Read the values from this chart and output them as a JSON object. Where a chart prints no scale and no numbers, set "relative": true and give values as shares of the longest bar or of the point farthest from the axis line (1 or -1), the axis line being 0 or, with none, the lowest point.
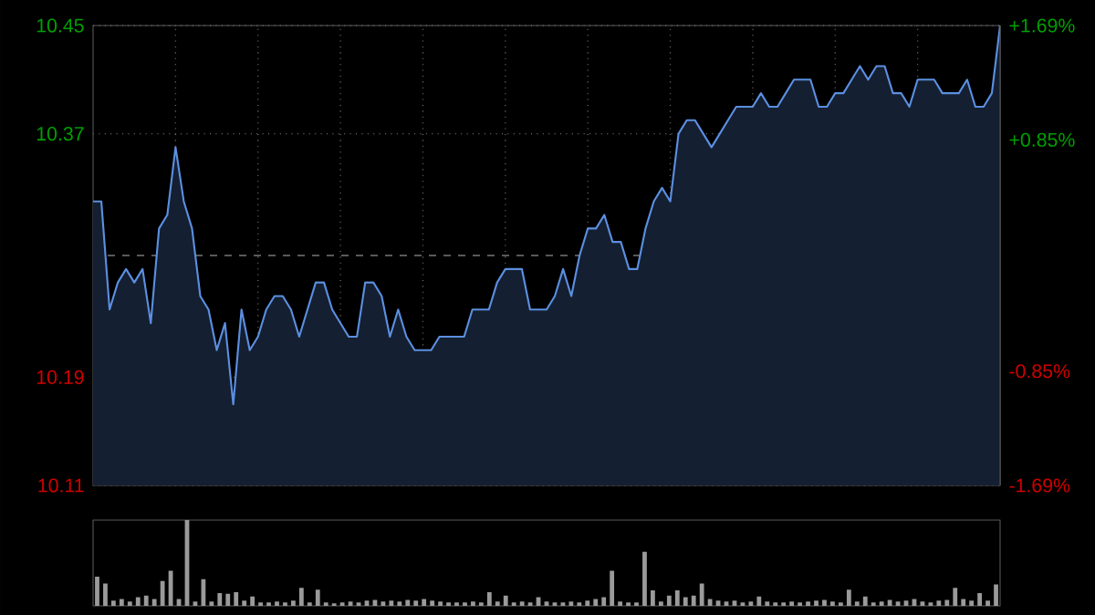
{
  "chart_data": [
    {
      "type": "area",
      "color": "#5b8fe0",
      "categories": [
        null,
        null,
        null,
        null,
        null,
        null,
        null,
        null,
        null,
        null,
        null,
        null,
        null,
        null,
        null,
        null,
        null,
        null,
        null,
        null,
        null,
        null,
        null,
        null,
        null,
        null,
        null,
        null,
        null,
        null,
        null,
        null,
        null,
        null,
        null,
        null,
        null,
        null,
        null,
        null,
        null,
        null,
        null,
        null,
        null,
        null,
        null,
        null,
        null,
        null,
        null,
        null,
        null,
        null,
        null,
        null,
        null,
        null,
        null,
        null,
        null,
        null,
        null,
        null,
        null,
        null,
        null,
        null,
        null,
        null,
        null,
        null,
        null,
        null,
        null,
        null,
        null,
        null,
        null,
        null,
        null,
        null,
        null,
        null,
        null,
        null,
        null,
        null,
        null,
        null,
        null,
        null,
        null,
        null,
        null,
        null,
        null,
        null,
        null,
        null,
        null,
        null,
        null,
        null,
        null,
        null,
        null,
        null,
        null,
        null,
        null
      ],
      "values": [
        10.32,
        10.32,
        10.24,
        10.26,
        10.27,
        10.26,
        10.27,
        10.23,
        10.3,
        10.31,
        10.36,
        10.32,
        10.3,
        10.25,
        10.24,
        10.21,
        10.23,
        10.17,
        10.24,
        10.21,
        10.22,
        10.24,
        10.25,
        10.25,
        10.24,
        10.22,
        10.24,
        10.26,
        10.26,
        10.24,
        10.23,
        10.22,
        10.22,
        10.26,
        10.26,
        10.25,
        10.22,
        10.24,
        10.22,
        10.21,
        10.21,
        10.21,
        10.22,
        10.22,
        10.22,
        10.22,
        10.24,
        10.24,
        10.24,
        10.26,
        10.27,
        10.27,
        10.27,
        10.24,
        10.24,
        10.24,
        10.25,
        10.27,
        10.25,
        10.28,
        10.3,
        10.3,
        10.31,
        10.29,
        10.29,
        10.27,
        10.27,
        10.3,
        10.32,
        10.33,
        10.32,
        10.37,
        10.38,
        10.38,
        10.37,
        10.36,
        10.37,
        10.38,
        10.39,
        10.39,
        10.39,
        10.4,
        10.39,
        10.39,
        10.4,
        10.41,
        10.41,
        10.41,
        10.39,
        10.39,
        10.4,
        10.4,
        10.41,
        10.42,
        10.41,
        10.42,
        10.42,
        10.4,
        10.4,
        10.39,
        10.41,
        10.41,
        10.41,
        10.4,
        10.4,
        10.4,
        10.41,
        10.39,
        10.39,
        10.4,
        10.45
      ],
      "ylim": [
        10.11,
        10.45
      ],
      "yticks": [
        {
          "value": 10.11,
          "label": "10.11"
        },
        {
          "value": 10.19,
          "label": "10.19"
        },
        {
          "value": 10.37,
          "label": "10.37"
        },
        {
          "value": 10.45,
          "label": "10.45"
        }
      ],
      "y2lim": [
        -1.69,
        1.69
      ],
      "y2ticks": [
        {
          "value": -1.69,
          "label": "-1.69%"
        },
        {
          "value": -0.85,
          "label": "-0.85%"
        },
        {
          "value": 0.85,
          "label": "+0.85%"
        },
        {
          "value": 1.69,
          "label": "+1.69%"
        }
      ],
      "ref_lines": [
        {
          "axis": "y",
          "value": 10.28,
          "color": "#777777",
          "line_style": "dashed"
        }
      ],
      "grid": true
    },
    {
      "type": "bar",
      "color": "#9a9a9a",
      "relative": true,
      "categories": [
        null,
        null,
        null,
        null,
        null,
        null,
        null,
        null,
        null,
        null,
        null,
        null,
        null,
        null,
        null,
        null,
        null,
        null,
        null,
        null,
        null,
        null,
        null,
        null,
        null,
        null,
        null,
        null,
        null,
        null,
        null,
        null,
        null,
        null,
        null,
        null,
        null,
        null,
        null,
        null,
        null,
        null,
        null,
        null,
        null,
        null,
        null,
        null,
        null,
        null,
        null,
        null,
        null,
        null,
        null,
        null,
        null,
        null,
        null,
        null,
        null,
        null,
        null,
        null,
        null,
        null,
        null,
        null,
        null,
        null,
        null,
        null,
        null,
        null,
        null,
        null,
        null,
        null,
        null,
        null,
        null,
        null,
        null,
        null,
        null,
        null,
        null,
        null,
        null,
        null,
        null,
        null,
        null,
        null,
        null,
        null,
        null,
        null,
        null,
        null,
        null,
        null,
        null,
        null,
        null,
        null,
        null,
        null,
        null,
        null,
        null
      ],
      "values": [
        0.34,
        0.26,
        0.06,
        0.08,
        0.05,
        0.1,
        0.12,
        0.08,
        0.29,
        0.41,
        0.08,
        1.0,
        0.05,
        0.31,
        0.05,
        0.15,
        0.14,
        0.16,
        0.06,
        0.11,
        0.04,
        0.04,
        0.05,
        0.04,
        0.06,
        0.21,
        0.04,
        0.19,
        0.04,
        0.03,
        0.04,
        0.05,
        0.04,
        0.06,
        0.07,
        0.05,
        0.06,
        0.05,
        0.07,
        0.06,
        0.08,
        0.06,
        0.05,
        0.04,
        0.04,
        0.04,
        0.05,
        0.04,
        0.16,
        0.05,
        0.12,
        0.04,
        0.05,
        0.04,
        0.1,
        0.05,
        0.04,
        0.04,
        0.05,
        0.04,
        0.06,
        0.08,
        0.1,
        0.41,
        0.05,
        0.04,
        0.04,
        0.63,
        0.18,
        0.05,
        0.12,
        0.18,
        0.1,
        0.12,
        0.26,
        0.08,
        0.06,
        0.05,
        0.06,
        0.04,
        0.05,
        0.11,
        0.05,
        0.04,
        0.04,
        0.05,
        0.04,
        0.05,
        0.06,
        0.07,
        0.05,
        0.04,
        0.19,
        0.05,
        0.11,
        0.04,
        0.05,
        0.07,
        0.05,
        0.06,
        0.08,
        0.05,
        0.04,
        0.06,
        0.07,
        0.21,
        0.08,
        0.06,
        0.15,
        0.06,
        0.25
      ]
    }
  ]
}
